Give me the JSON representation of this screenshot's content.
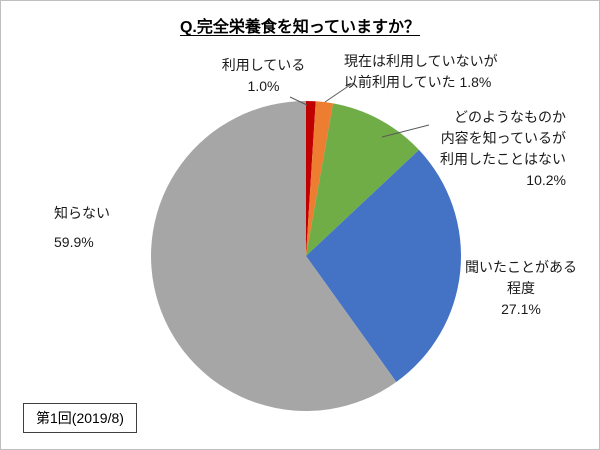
{
  "title": "Q.完全栄養食を知っていますか？",
  "footer": "第1回(2019/8)",
  "chart_data": {
    "type": "pie",
    "title": "Q.完全栄養食を知っていますか？",
    "start_angle_deg": 0,
    "direction": "clockwise",
    "total": 100.0,
    "slices": [
      {
        "key": "using",
        "label": "利用している",
        "value": 1.0,
        "color": "#C00000"
      },
      {
        "key": "former-user",
        "label": "現在は利用していないが以前利用していた",
        "value": 1.8,
        "color": "#ED7D31"
      },
      {
        "key": "know-content",
        "label": "どのようなものか内容を知っているが利用したことはない",
        "value": 10.2,
        "color": "#70AD47"
      },
      {
        "key": "heard",
        "label": "聞いたことがある程度",
        "value": 27.1,
        "color": "#4472C4"
      },
      {
        "key": "unknown",
        "label": "知らない",
        "value": 59.9,
        "color": "#A6A6A6"
      }
    ],
    "annotations": {
      "using": "利用している\n1.0%",
      "former": "現在は利用していないが\n以前利用していた  1.8%",
      "know": "どのようなものか\n内容を知っているが\n利用したことはない\n10.2%",
      "heard": "聞いたことがある\n程度\n27.1%",
      "unknown": "知らない\n59.9%"
    }
  }
}
